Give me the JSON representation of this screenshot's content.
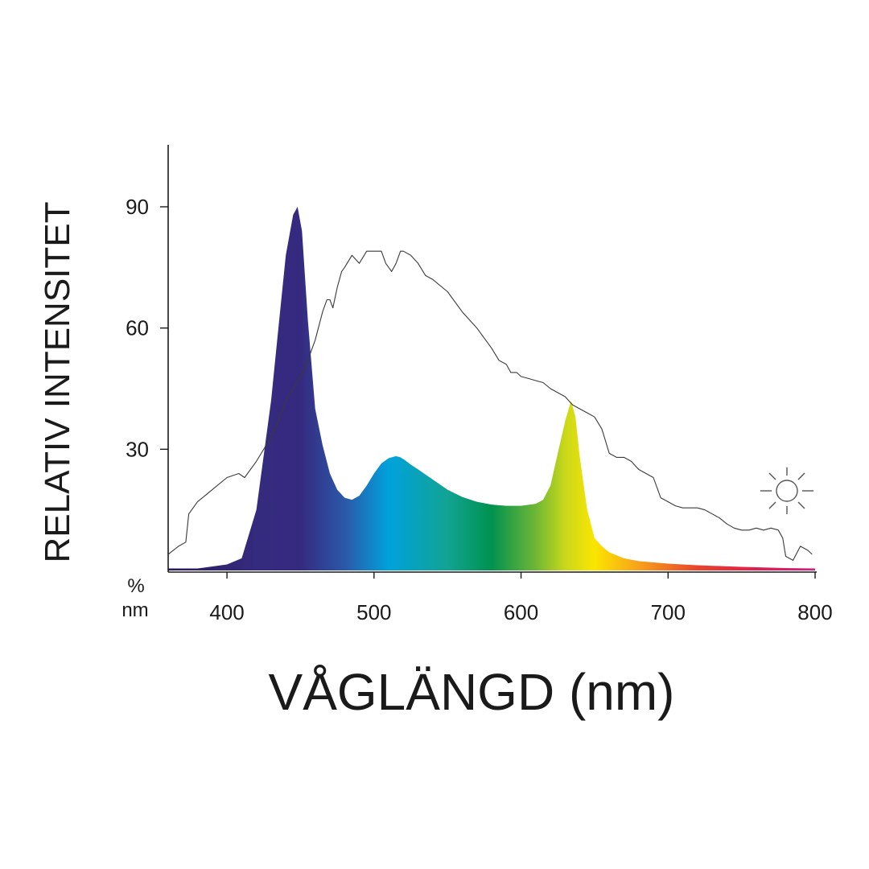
{
  "chart_data": {
    "type": "area",
    "title": "",
    "xlabel": "VÅGLÄNGD (nm)",
    "ylabel": "RELATIV INTENSITET",
    "x_unit_label": "nm",
    "y_unit_label": "%",
    "xlim": [
      360,
      800
    ],
    "ylim": [
      0,
      105
    ],
    "x_ticks": [
      400,
      500,
      600,
      700,
      800
    ],
    "y_ticks": [
      30,
      60,
      90
    ],
    "grid": false,
    "series": [
      {
        "style": "gradient-area",
        "x": [
          360,
          380,
          400,
          410,
          420,
          430,
          435,
          440,
          445,
          448,
          451,
          455,
          460,
          465,
          470,
          475,
          480,
          485,
          490,
          495,
          500,
          505,
          510,
          515,
          518,
          521,
          525,
          530,
          540,
          550,
          560,
          570,
          580,
          590,
          600,
          610,
          615,
          620,
          625,
          630,
          634,
          637,
          640,
          645,
          650,
          655,
          660,
          670,
          680,
          700,
          720,
          750,
          780,
          800
        ],
        "y": [
          0.5,
          0.5,
          1.5,
          3,
          15,
          42,
          60,
          78,
          88,
          90,
          84,
          62,
          40,
          31,
          24,
          20,
          18,
          17.5,
          18.5,
          21,
          24,
          26.5,
          27.8,
          28.3,
          28,
          27.3,
          26.2,
          25,
          22.5,
          20,
          18.2,
          17,
          16.3,
          16,
          16,
          16.5,
          17.5,
          21,
          29,
          37,
          42,
          38,
          28,
          15,
          8,
          6,
          4.5,
          3,
          2.3,
          1.7,
          1.3,
          0.9,
          0.6,
          0.5
        ]
      },
      {
        "style": "outline",
        "x": [
          360,
          367,
          372,
          374,
          380,
          390,
          400,
          408,
          412,
          420,
          430,
          435,
          440,
          445,
          450,
          455,
          460,
          465,
          468,
          470,
          472,
          475,
          478,
          480,
          485,
          490,
          495,
          500,
          505,
          508,
          512,
          515,
          518,
          520,
          525,
          530,
          535,
          540,
          550,
          560,
          570,
          580,
          585,
          590,
          593,
          597,
          600,
          605,
          610,
          615,
          620,
          625,
          630,
          635,
          640,
          645,
          650,
          655,
          660,
          665,
          670,
          675,
          680,
          685,
          690,
          695,
          700,
          705,
          710,
          715,
          720,
          725,
          730,
          735,
          740,
          745,
          750,
          755,
          760,
          765,
          770,
          775,
          778,
          780,
          785,
          790,
          795,
          798
        ],
        "y": [
          4,
          6,
          7,
          14,
          17,
          20,
          23,
          24,
          23,
          27,
          33,
          37,
          42,
          45,
          48,
          52,
          57,
          64,
          67,
          67,
          65,
          70,
          74,
          75,
          78,
          76,
          79,
          79,
          79,
          76,
          74,
          76,
          79,
          79,
          78,
          76,
          73,
          72,
          69,
          64,
          60,
          55,
          52,
          51,
          49,
          49,
          48,
          47.5,
          47,
          46.5,
          45,
          44,
          43,
          41,
          40,
          39,
          38,
          35,
          29,
          28,
          28,
          27,
          25,
          24,
          23,
          18,
          17,
          16,
          15.5,
          15.5,
          15.5,
          15,
          14,
          13,
          11.5,
          10.5,
          10,
          10,
          10.5,
          10,
          10.5,
          10,
          8,
          3.5,
          2.5,
          6,
          5,
          4
        ]
      }
    ],
    "gradient_colors": [
      {
        "nm": 360,
        "color": "#2a1a5e"
      },
      {
        "nm": 420,
        "color": "#352b7e"
      },
      {
        "nm": 450,
        "color": "#352a80"
      },
      {
        "nm": 480,
        "color": "#2c58a8"
      },
      {
        "nm": 510,
        "color": "#00a2dc"
      },
      {
        "nm": 550,
        "color": "#12a394"
      },
      {
        "nm": 580,
        "color": "#00924f"
      },
      {
        "nm": 610,
        "color": "#6eb735"
      },
      {
        "nm": 630,
        "color": "#c9d81a"
      },
      {
        "nm": 650,
        "color": "#fbe500"
      },
      {
        "nm": 680,
        "color": "#f7a21b"
      },
      {
        "nm": 720,
        "color": "#e8442a"
      },
      {
        "nm": 760,
        "color": "#e01f4f"
      },
      {
        "nm": 800,
        "color": "#d11f84"
      }
    ],
    "annotations": [
      {
        "type": "icon",
        "name": "sun-icon",
        "near_series": "outline"
      }
    ]
  }
}
